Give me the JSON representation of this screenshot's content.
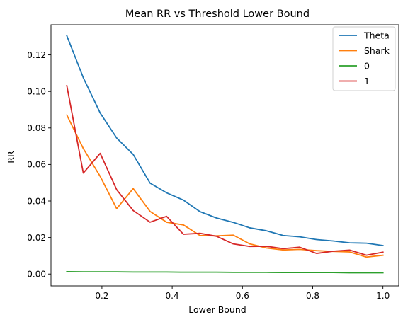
{
  "chart_data": {
    "type": "line",
    "title": "Mean RR vs Threshold Lower Bound",
    "xlabel": "Lower Bound",
    "ylabel": "RR",
    "xlim": [
      0.055,
      1.045
    ],
    "ylim": [
      -0.0065,
      0.1365
    ],
    "xticks": [
      0.2,
      0.4,
      0.6,
      0.8,
      1.0
    ],
    "xtick_labels": [
      "0.2",
      "0.4",
      "0.6",
      "0.8",
      "1.0"
    ],
    "yticks": [
      0.0,
      0.02,
      0.04,
      0.06,
      0.08,
      0.1,
      0.12
    ],
    "ytick_labels": [
      "0.00",
      "0.02",
      "0.04",
      "0.06",
      "0.08",
      "0.10",
      "0.12"
    ],
    "grid": false,
    "legend_position": "top-right",
    "x": [
      0.1,
      0.147,
      0.195,
      0.242,
      0.289,
      0.337,
      0.384,
      0.432,
      0.479,
      0.526,
      0.574,
      0.621,
      0.668,
      0.716,
      0.763,
      0.811,
      0.858,
      0.905,
      0.953,
      1.0
    ],
    "series": [
      {
        "name": "Theta",
        "color": "#1f77b4",
        "values": [
          0.1305,
          0.1075,
          0.0882,
          0.0745,
          0.0655,
          0.0498,
          0.0445,
          0.0405,
          0.0342,
          0.0307,
          0.0283,
          0.0253,
          0.0237,
          0.0211,
          0.0204,
          0.0189,
          0.0181,
          0.0171,
          0.0169,
          0.0156
        ]
      },
      {
        "name": "Shark",
        "color": "#ff7f0e",
        "values": [
          0.0871,
          0.0687,
          0.0535,
          0.0358,
          0.0468,
          0.0343,
          0.0284,
          0.0269,
          0.0211,
          0.0209,
          0.0213,
          0.0165,
          0.0143,
          0.0132,
          0.0135,
          0.0128,
          0.0124,
          0.0121,
          0.0093,
          0.0103
        ]
      },
      {
        "name": "0",
        "color": "#2ca02c",
        "values": [
          0.0013,
          0.0012,
          0.0012,
          0.0012,
          0.0011,
          0.0011,
          0.0011,
          0.001,
          0.001,
          0.001,
          0.0009,
          0.0009,
          0.0009,
          0.0008,
          0.0008,
          0.0008,
          0.0008,
          0.0007,
          0.0007,
          0.0007
        ]
      },
      {
        "name": "1",
        "color": "#d62728",
        "values": [
          0.1032,
          0.0553,
          0.0661,
          0.0462,
          0.0348,
          0.0284,
          0.0316,
          0.0218,
          0.0223,
          0.0207,
          0.0165,
          0.0151,
          0.0152,
          0.0139,
          0.0147,
          0.0113,
          0.0125,
          0.0131,
          0.0103,
          0.012
        ]
      }
    ]
  }
}
